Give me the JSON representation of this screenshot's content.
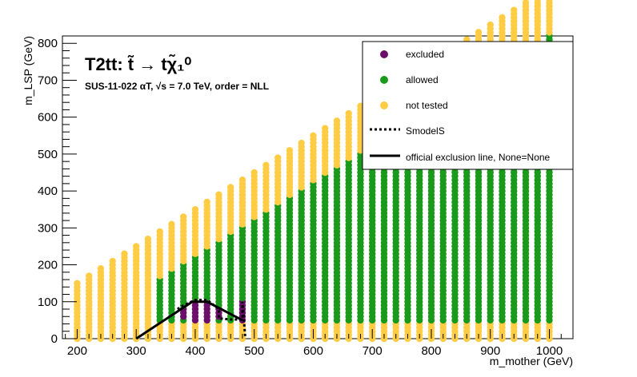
{
  "chart_data": {
    "type": "scatter",
    "title": "T2tt: t̃ → tχ̃₁⁰",
    "subtitle": "SUS-11-022   αT, √s = 7.0 TeV, order = NLL",
    "xlabel": "m_mother (GeV)",
    "ylabel": "m_LSP (GeV)",
    "xlim": [
      175,
      1040
    ],
    "ylim": [
      0,
      820
    ],
    "xticks": [
      200,
      300,
      400,
      500,
      600,
      700,
      800,
      900,
      1000
    ],
    "yticks": [
      0,
      100,
      200,
      300,
      400,
      500,
      600,
      700,
      800
    ],
    "grid": false,
    "legend_position": "top-right",
    "colors": {
      "excluded": "#6b0f6b",
      "allowed": "#1a9a1a",
      "not_tested": "#ffcc44",
      "line": "#000000"
    },
    "point_grid": {
      "x_start": 200,
      "x_end": 1000,
      "x_step": 20,
      "y_step": 10,
      "y_min_per_column": 0,
      "y_max_per_column": "x - 50",
      "not_tested_below_y": 50,
      "allowed_start_x": 340,
      "allowed_upper_y": "x - 180"
    },
    "excluded_points": [
      [
        380,
        60
      ],
      [
        380,
        70
      ],
      [
        380,
        80
      ],
      [
        400,
        50
      ],
      [
        400,
        60
      ],
      [
        400,
        70
      ],
      [
        400,
        80
      ],
      [
        400,
        90
      ],
      [
        400,
        100
      ],
      [
        420,
        50
      ],
      [
        420,
        60
      ],
      [
        420,
        70
      ],
      [
        420,
        80
      ],
      [
        420,
        90
      ],
      [
        420,
        100
      ],
      [
        440,
        60
      ],
      [
        440,
        70
      ],
      [
        440,
        80
      ],
      [
        480,
        50
      ],
      [
        480,
        60
      ],
      [
        480,
        70
      ],
      [
        480,
        80
      ],
      [
        480,
        90
      ],
      [
        480,
        100
      ]
    ],
    "series": [
      {
        "name": "SmodelS",
        "style": "dotted",
        "x": [
          370,
          380,
          400,
          420,
          440,
          440,
          460,
          480,
          480,
          485
        ],
        "y": [
          80,
          90,
          105,
          105,
          80,
          55,
          52,
          52,
          100,
          0
        ]
      },
      {
        "name": "official exclusion line, None=None",
        "style": "solid",
        "x": [
          300,
          395,
          420,
          480
        ],
        "y": [
          0,
          100,
          100,
          50
        ]
      }
    ],
    "legend": [
      {
        "label": "excluded",
        "marker": "dot",
        "color": "#6b0f6b"
      },
      {
        "label": "allowed",
        "marker": "dot",
        "color": "#1a9a1a"
      },
      {
        "label": "not tested",
        "marker": "dot",
        "color": "#ffcc44"
      },
      {
        "label": "SmodelS",
        "marker": "dotted-line",
        "color": "#000000"
      },
      {
        "label": "official exclusion line, None=None",
        "marker": "solid-line",
        "color": "#000000"
      }
    ]
  }
}
